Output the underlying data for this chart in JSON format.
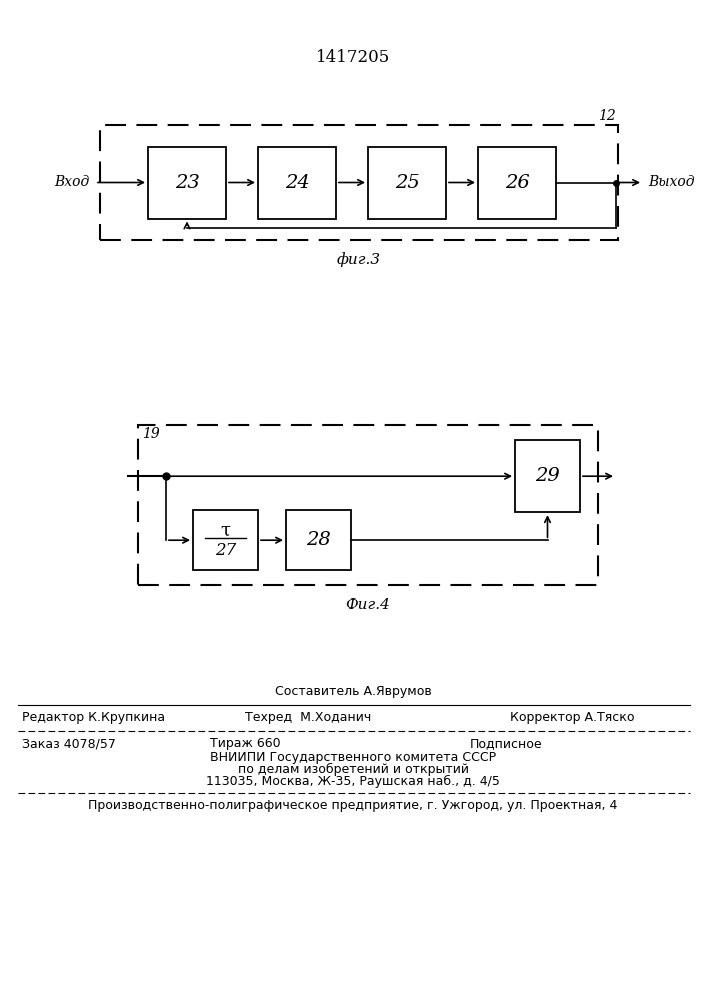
{
  "title": "1417205",
  "fig3_label": "фиг.3",
  "fig4_label": "Фиг.4",
  "fig3_input_label": "Вход",
  "fig3_output_label": "Выход",
  "fig3_block_labels": [
    "23",
    "24",
    "25",
    "26"
  ],
  "fig3_outer_label": "12",
  "fig4_outer_label": "19",
  "fig4_block_labels": [
    "27",
    "28",
    "29"
  ],
  "fig4_tau_label": "τ",
  "footer_sestavitel": "Составитель А.Яврумов",
  "footer_redaktor": "Редактор К.Крупкина",
  "footer_tehred": "Техред  М.Ходанич",
  "footer_korrektor": "Корректор А.Тяско",
  "footer_zakaz": "Заказ 4078/57",
  "footer_tiraz": "Тираж 660",
  "footer_podpisnoe": "Подписное",
  "footer_vniip1": "ВНИИПИ Государственного комитета СССР",
  "footer_vniip2": "по делам изобретений и открытий",
  "footer_vniip3": "113035, Москва, Ж-35, Раушская наб., д. 4/5",
  "footer_last": "Производственно-полиграфическое предприятие, г. Ужгород, ул. Проектная, 4",
  "bg_color": "#ffffff",
  "line_color": "#000000",
  "text_color": "#000000"
}
